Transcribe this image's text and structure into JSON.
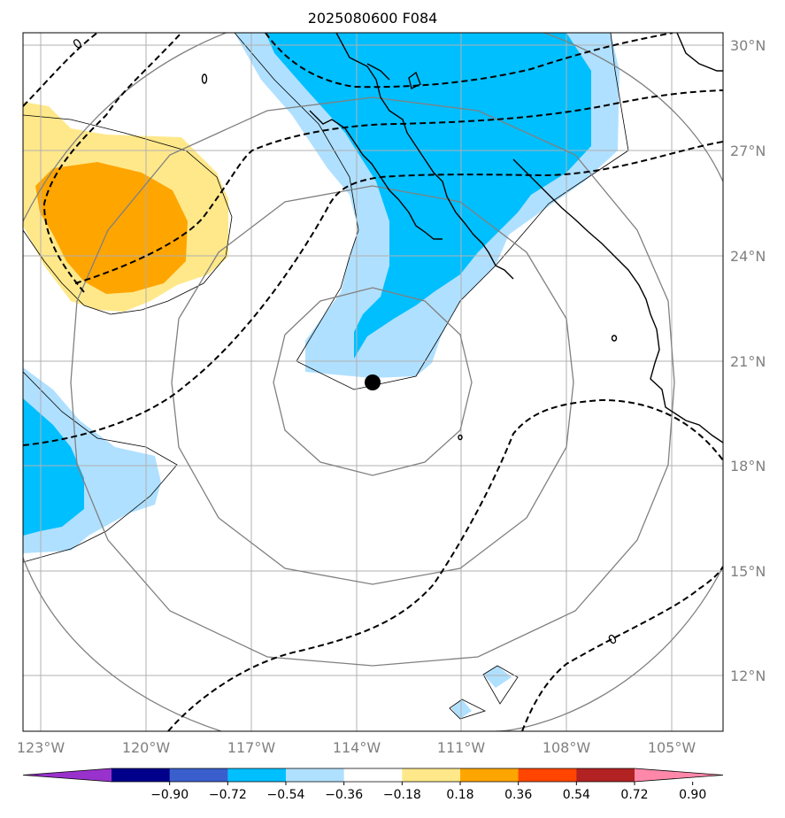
{
  "title": "2025080600 F084",
  "lon_ticks": [
    "123°W",
    "120°W",
    "117°W",
    "114°W",
    "111°W",
    "108°W",
    "105°W"
  ],
  "lat_ticks": [
    "30°N",
    "27°N",
    "24°N",
    "21°N",
    "18°N",
    "15°N",
    "12°N"
  ],
  "contour_labels": [
    "0",
    "0"
  ],
  "colorbar": {
    "tick_labels": [
      "−0.90",
      "−0.72",
      "−0.54",
      "−0.36",
      "−0.18",
      "0.18",
      "0.36",
      "0.54",
      "0.72",
      "0.90"
    ],
    "colors": [
      "#9932cc",
      "#00008b",
      "#3a5fcd",
      "#00bfff",
      "#b0e0ff",
      "#ffffff",
      "#ffe88a",
      "#ffa500",
      "#ff4500",
      "#b22222",
      "#ff88aa"
    ]
  },
  "fill_colors": {
    "light_blue": "#b0e0ff",
    "blue": "#00bfff",
    "light_yellow": "#ffe88a",
    "orange": "#ffa500"
  },
  "storm_center_marker": "black-dot"
}
